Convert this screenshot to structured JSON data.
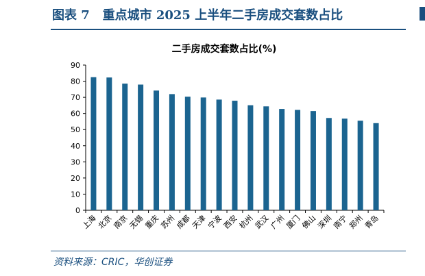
{
  "figure_title": "图表 7   重点城市 2025 上半年二手房成交套数占比",
  "source": "资料来源：CRIC，华创证券",
  "colors": {
    "bar": "#1b6490",
    "accent": "#1a4f7f"
  },
  "chart_data": {
    "type": "bar",
    "title": "二手房成交套数占比(%)",
    "categories": [
      "上海",
      "北京",
      "南京",
      "无锡",
      "重庆",
      "苏州",
      "成都",
      "天津",
      "宁波",
      "西安",
      "杭州",
      "武汉",
      "广州",
      "厦门",
      "佛山",
      "深圳",
      "南宁",
      "郑州",
      "青岛"
    ],
    "values": [
      82.5,
      82.3,
      78.5,
      77.9,
      74.2,
      72.0,
      70.4,
      69.9,
      68.6,
      67.9,
      65.1,
      64.4,
      62.8,
      62.2,
      61.5,
      57.2,
      56.8,
      55.5,
      54.0
    ],
    "ylim": [
      0,
      90
    ],
    "yticks": [
      0,
      10,
      20,
      30,
      40,
      50,
      60,
      70,
      80,
      90
    ],
    "grid": false
  }
}
